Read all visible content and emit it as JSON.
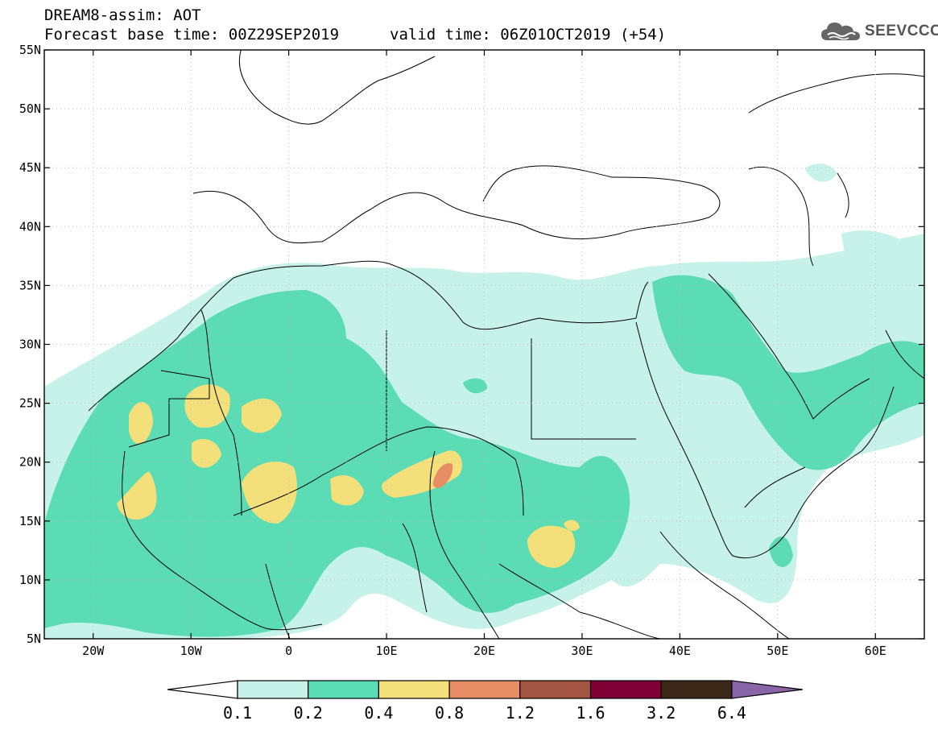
{
  "header": {
    "title": "DREAM8-assim: AOT",
    "base_time": "Forecast base time: 00Z29SEP2019",
    "valid_time": "valid time: 06Z01OCT2019 (+54)"
  },
  "logo": {
    "text": "SEEVCCC",
    "icon": "cloud-icon"
  },
  "map": {
    "lon_range": [
      -25,
      65
    ],
    "lat_range": [
      5,
      55
    ],
    "lon_ticks": [
      "20W",
      "10W",
      "0",
      "10E",
      "20E",
      "30E",
      "40E",
      "50E",
      "60E"
    ],
    "lat_ticks": [
      "5N",
      "10N",
      "15N",
      "20N",
      "25N",
      "30N",
      "35N",
      "40N",
      "45N",
      "50N",
      "55N"
    ],
    "colors": {
      "c01": "#c6f2ea",
      "c02": "#5cdcb4",
      "c04": "#f4e07a",
      "c08": "#e88e66",
      "c12": "#a45644",
      "c16": "#800035",
      "c32": "#3c2818",
      "c64": "#8a64a8"
    }
  },
  "colorbar": {
    "labels": [
      "0.1",
      "0.2",
      "0.4",
      "0.8",
      "1.2",
      "1.6",
      "3.2",
      "6.4"
    ],
    "colors": [
      "#c6f2ea",
      "#5cdcb4",
      "#f4e07a",
      "#e88e66",
      "#a45644",
      "#800035",
      "#3c2818"
    ],
    "overflow_color": "#8a64a8"
  }
}
